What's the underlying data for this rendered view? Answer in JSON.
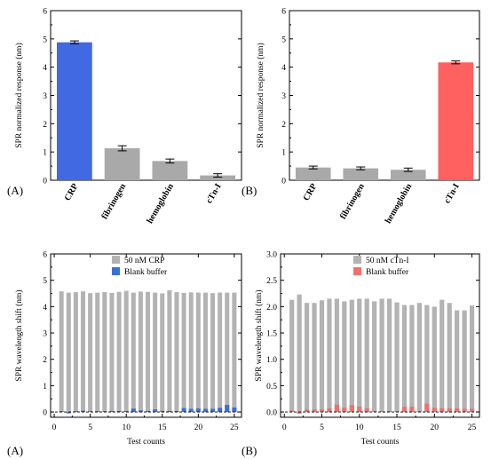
{
  "chart_data": [
    {
      "type": "bar",
      "panel_label": "(A)",
      "ylabel": "SPR normalized response (nm)",
      "ylim": [
        0,
        6
      ],
      "yticks": [
        "0",
        "1",
        "2",
        "3",
        "4",
        "5",
        "6"
      ],
      "categories": [
        "CRP",
        "fibrinogen",
        "hemoglobin",
        "cTn-I"
      ],
      "values": [
        4.88,
        1.13,
        0.68,
        0.17
      ],
      "errors": [
        0.05,
        0.09,
        0.07,
        0.06
      ],
      "colors": [
        "#4169e1",
        "#a9a9a9",
        "#a9a9a9",
        "#a9a9a9"
      ]
    },
    {
      "type": "bar",
      "panel_label": "(B)",
      "ylabel": "SPR normalized response (nm)",
      "ylim": [
        0,
        6
      ],
      "yticks": [
        "0",
        "1",
        "2",
        "3",
        "4",
        "5",
        "6"
      ],
      "categories": [
        "CRP",
        "fibrinogen",
        "hemoglobin",
        "cTn-I"
      ],
      "values": [
        0.45,
        0.42,
        0.37,
        4.17
      ],
      "errors": [
        0.05,
        0.05,
        0.06,
        0.05
      ],
      "colors": [
        "#a9a9a9",
        "#a9a9a9",
        "#a9a9a9",
        "#ff6060"
      ]
    },
    {
      "type": "bar",
      "panel_label": "(A)",
      "xlabel": "Test counts",
      "ylabel": "SPR wavelength shift (nm)",
      "xlim": [
        -0.5,
        26
      ],
      "ylim": [
        -0.2,
        6
      ],
      "xticks": [
        "0",
        "5",
        "10",
        "15",
        "20",
        "25"
      ],
      "yticks": [
        "0",
        "1",
        "2",
        "3",
        "4",
        "5",
        "6"
      ],
      "x": [
        1,
        2,
        3,
        4,
        5,
        6,
        7,
        8,
        9,
        10,
        11,
        12,
        13,
        14,
        15,
        16,
        17,
        18,
        19,
        20,
        21,
        22,
        23,
        24,
        25
      ],
      "series": [
        {
          "name": "50 nM CRP",
          "color": "#b3b3b3",
          "values": [
            4.58,
            4.53,
            4.55,
            4.58,
            4.51,
            4.53,
            4.55,
            4.52,
            4.56,
            4.6,
            4.53,
            4.57,
            4.56,
            4.53,
            4.5,
            4.62,
            4.55,
            4.52,
            4.54,
            4.53,
            4.53,
            4.51,
            4.53,
            4.53,
            4.53
          ]
        },
        {
          "name": "Blank buffer",
          "color": "#3a6fd8",
          "values": [
            0.03,
            -0.05,
            0.03,
            0.05,
            0.03,
            0.03,
            0.03,
            0.04,
            0.04,
            0.04,
            0.13,
            0.06,
            0.04,
            0.1,
            0.04,
            0.04,
            0.04,
            0.15,
            0.12,
            0.13,
            0.12,
            0.12,
            0.16,
            0.27,
            0.17
          ]
        }
      ]
    },
    {
      "type": "bar",
      "panel_label": "(B)",
      "xlabel": "Test counts",
      "ylabel": "SPR wavelength shift (nm)",
      "xlim": [
        -0.5,
        26
      ],
      "ylim": [
        -0.1,
        3
      ],
      "xticks": [
        "0",
        "5",
        "10",
        "15",
        "20",
        "25"
      ],
      "yticks": [
        "0.0",
        "0.5",
        "1.0",
        "1.5",
        "2.0",
        "2.5",
        "3.0"
      ],
      "x": [
        1,
        2,
        3,
        4,
        5,
        6,
        7,
        8,
        9,
        10,
        11,
        12,
        13,
        14,
        15,
        16,
        17,
        18,
        19,
        20,
        21,
        22,
        23,
        24,
        25
      ],
      "series": [
        {
          "name": "50 nM cTn-I",
          "color": "#b3b3b3",
          "values": [
            2.13,
            2.23,
            2.07,
            2.07,
            2.12,
            2.15,
            2.15,
            2.1,
            2.13,
            2.15,
            2.15,
            2.1,
            2.15,
            2.15,
            2.08,
            2.03,
            2.03,
            2.07,
            2.03,
            2.0,
            2.13,
            2.07,
            1.93,
            1.93,
            2.02
          ]
        },
        {
          "name": "Blank buffer",
          "color": "#f07070",
          "values": [
            0.03,
            -0.03,
            0.05,
            0.05,
            0.05,
            0.07,
            0.14,
            0.08,
            0.13,
            0.1,
            0.07,
            0.02,
            0.02,
            0.02,
            0.02,
            0.1,
            0.1,
            0.02,
            0.16,
            0.08,
            0.07,
            0.07,
            0.07,
            0.06,
            0.06
          ]
        }
      ]
    }
  ]
}
